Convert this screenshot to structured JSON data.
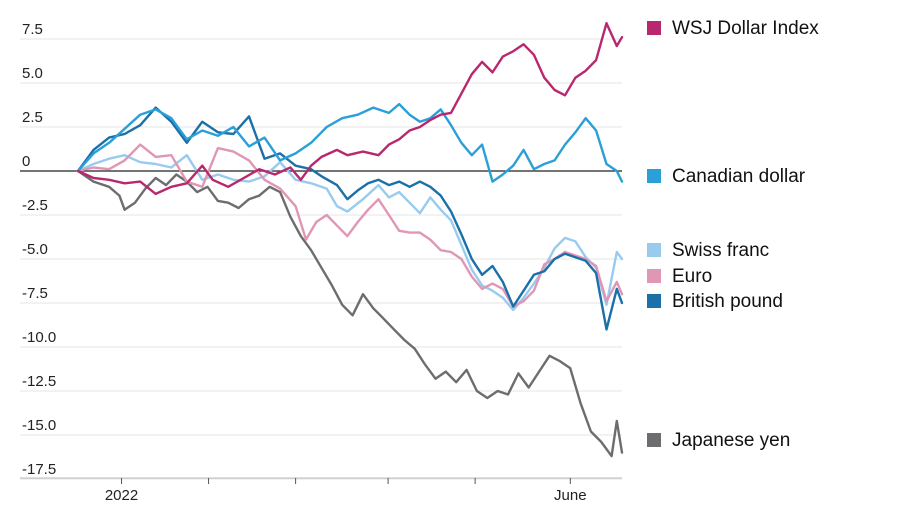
{
  "chart_data": {
    "type": "line",
    "title": "",
    "xlabel": "",
    "ylabel": "",
    "ylim": [
      -17.5,
      7.5
    ],
    "y_ticks": [
      7.5,
      5.0,
      2.5,
      0,
      -2.5,
      -5.0,
      -7.5,
      -10.0,
      -12.5,
      -15.0,
      -17.5
    ],
    "y_tick_labels": [
      "7.5",
      "5.0",
      "2.5",
      "0",
      "-2.5",
      "-5.0",
      "-7.5",
      "-10.0",
      "-12.5",
      "-15.0",
      "-17.5"
    ],
    "x_tick_labels": [
      {
        "label": "2022",
        "t": 0.08
      },
      {
        "label": "June",
        "t": 0.905
      }
    ],
    "x_minor_ticks": [
      0.08,
      0.24,
      0.4,
      0.57,
      0.73,
      0.905
    ],
    "grid": "horizontal",
    "legend_placement": "right",
    "series": [
      {
        "name": "WSJ Dollar Index",
        "color": "#b8286e",
        "points": [
          [
            0,
            0
          ],
          [
            0.03,
            -0.4
          ],
          [
            0.06,
            -0.5
          ],
          [
            0.09,
            -0.7
          ],
          [
            0.12,
            -0.6
          ],
          [
            0.15,
            -1.3
          ],
          [
            0.18,
            -0.9
          ],
          [
            0.21,
            -0.7
          ],
          [
            0.24,
            0.3
          ],
          [
            0.26,
            -0.5
          ],
          [
            0.29,
            -0.9
          ],
          [
            0.32,
            -0.4
          ],
          [
            0.35,
            0.1
          ],
          [
            0.38,
            -0.2
          ],
          [
            0.41,
            0.2
          ],
          [
            0.43,
            -0.5
          ],
          [
            0.45,
            0.3
          ],
          [
            0.47,
            0.8
          ],
          [
            0.5,
            1.2
          ],
          [
            0.52,
            0.9
          ],
          [
            0.55,
            1.1
          ],
          [
            0.58,
            0.9
          ],
          [
            0.6,
            1.5
          ],
          [
            0.62,
            1.8
          ],
          [
            0.64,
            2.3
          ],
          [
            0.66,
            2.5
          ],
          [
            0.68,
            2.9
          ],
          [
            0.7,
            3.2
          ],
          [
            0.72,
            3.3
          ],
          [
            0.74,
            4.4
          ],
          [
            0.76,
            5.5
          ],
          [
            0.78,
            6.2
          ],
          [
            0.8,
            5.6
          ],
          [
            0.82,
            6.5
          ],
          [
            0.84,
            6.8
          ],
          [
            0.86,
            7.2
          ],
          [
            0.88,
            6.6
          ],
          [
            0.9,
            5.3
          ],
          [
            0.92,
            4.6
          ],
          [
            0.94,
            4.3
          ],
          [
            0.96,
            5.3
          ],
          [
            0.98,
            5.7
          ],
          [
            1.0,
            6.3
          ],
          [
            1.02,
            8.4
          ],
          [
            1.04,
            7.1
          ],
          [
            1.05,
            7.6
          ]
        ]
      },
      {
        "name": "Canadian dollar",
        "color": "#2a9fd8",
        "points": [
          [
            0,
            0
          ],
          [
            0.03,
            1.0
          ],
          [
            0.06,
            1.6
          ],
          [
            0.09,
            2.4
          ],
          [
            0.12,
            3.2
          ],
          [
            0.15,
            3.5
          ],
          [
            0.18,
            3.0
          ],
          [
            0.21,
            1.8
          ],
          [
            0.24,
            2.3
          ],
          [
            0.27,
            2.0
          ],
          [
            0.3,
            2.5
          ],
          [
            0.33,
            1.4
          ],
          [
            0.36,
            1.9
          ],
          [
            0.39,
            0.6
          ],
          [
            0.42,
            1.0
          ],
          [
            0.45,
            1.6
          ],
          [
            0.48,
            2.5
          ],
          [
            0.51,
            3.0
          ],
          [
            0.54,
            3.2
          ],
          [
            0.57,
            3.6
          ],
          [
            0.6,
            3.3
          ],
          [
            0.62,
            3.8
          ],
          [
            0.64,
            3.2
          ],
          [
            0.66,
            2.8
          ],
          [
            0.68,
            3.0
          ],
          [
            0.7,
            3.5
          ],
          [
            0.72,
            2.6
          ],
          [
            0.74,
            1.6
          ],
          [
            0.76,
            0.9
          ],
          [
            0.78,
            1.5
          ],
          [
            0.8,
            -0.6
          ],
          [
            0.82,
            -0.2
          ],
          [
            0.84,
            0.3
          ],
          [
            0.86,
            1.2
          ],
          [
            0.88,
            0.1
          ],
          [
            0.9,
            0.4
          ],
          [
            0.92,
            0.6
          ],
          [
            0.94,
            1.5
          ],
          [
            0.96,
            2.2
          ],
          [
            0.98,
            3.0
          ],
          [
            1.0,
            2.3
          ],
          [
            1.02,
            0.4
          ],
          [
            1.04,
            0.0
          ],
          [
            1.05,
            -0.6
          ]
        ]
      },
      {
        "name": "Swiss franc",
        "color": "#98cbee",
        "points": [
          [
            0,
            0
          ],
          [
            0.03,
            0.4
          ],
          [
            0.06,
            0.7
          ],
          [
            0.09,
            0.9
          ],
          [
            0.12,
            0.5
          ],
          [
            0.15,
            0.4
          ],
          [
            0.18,
            0.2
          ],
          [
            0.21,
            0.9
          ],
          [
            0.24,
            -0.5
          ],
          [
            0.27,
            -0.2
          ],
          [
            0.3,
            -0.5
          ],
          [
            0.33,
            -0.6
          ],
          [
            0.36,
            -0.3
          ],
          [
            0.39,
            0.5
          ],
          [
            0.42,
            -0.5
          ],
          [
            0.45,
            -0.7
          ],
          [
            0.48,
            -1.0
          ],
          [
            0.5,
            -2.0
          ],
          [
            0.52,
            -2.3
          ],
          [
            0.55,
            -1.6
          ],
          [
            0.58,
            -0.8
          ],
          [
            0.6,
            -1.5
          ],
          [
            0.62,
            -1.2
          ],
          [
            0.64,
            -1.8
          ],
          [
            0.66,
            -2.4
          ],
          [
            0.68,
            -1.5
          ],
          [
            0.7,
            -2.2
          ],
          [
            0.72,
            -2.8
          ],
          [
            0.74,
            -4.2
          ],
          [
            0.76,
            -5.6
          ],
          [
            0.78,
            -6.5
          ],
          [
            0.8,
            -6.8
          ],
          [
            0.82,
            -7.2
          ],
          [
            0.84,
            -7.9
          ],
          [
            0.86,
            -7.2
          ],
          [
            0.88,
            -6.4
          ],
          [
            0.9,
            -5.5
          ],
          [
            0.92,
            -4.4
          ],
          [
            0.94,
            -3.8
          ],
          [
            0.96,
            -4.0
          ],
          [
            0.98,
            -4.9
          ],
          [
            1.0,
            -5.5
          ],
          [
            1.02,
            -7.6
          ],
          [
            1.04,
            -4.6
          ],
          [
            1.05,
            -5.0
          ]
        ]
      },
      {
        "name": "Euro",
        "color": "#e097b5",
        "points": [
          [
            0,
            0
          ],
          [
            0.03,
            0.2
          ],
          [
            0.06,
            0.1
          ],
          [
            0.09,
            0.6
          ],
          [
            0.12,
            1.5
          ],
          [
            0.15,
            0.8
          ],
          [
            0.18,
            0.9
          ],
          [
            0.21,
            -0.6
          ],
          [
            0.24,
            -0.9
          ],
          [
            0.27,
            1.3
          ],
          [
            0.3,
            1.1
          ],
          [
            0.33,
            0.6
          ],
          [
            0.36,
            -0.5
          ],
          [
            0.39,
            -1.0
          ],
          [
            0.42,
            -2.0
          ],
          [
            0.44,
            -3.9
          ],
          [
            0.46,
            -2.9
          ],
          [
            0.48,
            -2.5
          ],
          [
            0.5,
            -3.1
          ],
          [
            0.52,
            -3.7
          ],
          [
            0.54,
            -2.9
          ],
          [
            0.56,
            -2.2
          ],
          [
            0.58,
            -1.6
          ],
          [
            0.6,
            -2.5
          ],
          [
            0.62,
            -3.4
          ],
          [
            0.64,
            -3.5
          ],
          [
            0.66,
            -3.5
          ],
          [
            0.68,
            -3.9
          ],
          [
            0.7,
            -4.5
          ],
          [
            0.72,
            -4.6
          ],
          [
            0.74,
            -5.0
          ],
          [
            0.76,
            -6.0
          ],
          [
            0.78,
            -6.7
          ],
          [
            0.8,
            -6.4
          ],
          [
            0.82,
            -6.7
          ],
          [
            0.84,
            -7.7
          ],
          [
            0.86,
            -7.4
          ],
          [
            0.88,
            -6.8
          ],
          [
            0.9,
            -5.3
          ],
          [
            0.92,
            -5.0
          ],
          [
            0.94,
            -4.6
          ],
          [
            0.96,
            -4.8
          ],
          [
            0.98,
            -5.0
          ],
          [
            1.0,
            -5.4
          ],
          [
            1.02,
            -7.4
          ],
          [
            1.04,
            -6.3
          ],
          [
            1.05,
            -7.0
          ]
        ]
      },
      {
        "name": "British pound",
        "color": "#1b70a8",
        "points": [
          [
            0,
            0
          ],
          [
            0.03,
            1.2
          ],
          [
            0.06,
            1.9
          ],
          [
            0.09,
            2.1
          ],
          [
            0.12,
            2.6
          ],
          [
            0.15,
            3.6
          ],
          [
            0.18,
            2.8
          ],
          [
            0.21,
            1.6
          ],
          [
            0.24,
            2.8
          ],
          [
            0.27,
            2.2
          ],
          [
            0.3,
            2.1
          ],
          [
            0.33,
            3.1
          ],
          [
            0.36,
            0.7
          ],
          [
            0.39,
            1.0
          ],
          [
            0.42,
            0.3
          ],
          [
            0.45,
            0.1
          ],
          [
            0.47,
            -0.3
          ],
          [
            0.5,
            -0.8
          ],
          [
            0.52,
            -1.6
          ],
          [
            0.54,
            -1.1
          ],
          [
            0.56,
            -0.7
          ],
          [
            0.58,
            -0.5
          ],
          [
            0.6,
            -0.8
          ],
          [
            0.62,
            -0.6
          ],
          [
            0.64,
            -0.9
          ],
          [
            0.66,
            -0.6
          ],
          [
            0.68,
            -0.9
          ],
          [
            0.7,
            -1.4
          ],
          [
            0.72,
            -2.3
          ],
          [
            0.74,
            -3.6
          ],
          [
            0.76,
            -5.0
          ],
          [
            0.78,
            -5.9
          ],
          [
            0.8,
            -5.4
          ],
          [
            0.82,
            -6.3
          ],
          [
            0.84,
            -7.7
          ],
          [
            0.86,
            -6.8
          ],
          [
            0.88,
            -5.9
          ],
          [
            0.9,
            -5.7
          ],
          [
            0.92,
            -5.0
          ],
          [
            0.94,
            -4.7
          ],
          [
            0.96,
            -4.9
          ],
          [
            0.98,
            -5.1
          ],
          [
            1.0,
            -5.8
          ],
          [
            1.02,
            -9.0
          ],
          [
            1.04,
            -6.7
          ],
          [
            1.05,
            -7.5
          ]
        ]
      },
      {
        "name": "Japanese yen",
        "color": "#6d6d70",
        "points": [
          [
            0,
            0
          ],
          [
            0.03,
            -0.6
          ],
          [
            0.06,
            -0.9
          ],
          [
            0.08,
            -1.4
          ],
          [
            0.09,
            -2.2
          ],
          [
            0.11,
            -1.8
          ],
          [
            0.13,
            -1.0
          ],
          [
            0.15,
            -0.4
          ],
          [
            0.17,
            -0.8
          ],
          [
            0.19,
            -0.2
          ],
          [
            0.21,
            -0.6
          ],
          [
            0.23,
            -1.2
          ],
          [
            0.25,
            -0.9
          ],
          [
            0.27,
            -1.7
          ],
          [
            0.29,
            -1.8
          ],
          [
            0.31,
            -2.1
          ],
          [
            0.33,
            -1.6
          ],
          [
            0.35,
            -1.4
          ],
          [
            0.37,
            -0.9
          ],
          [
            0.39,
            -1.2
          ],
          [
            0.41,
            -2.6
          ],
          [
            0.43,
            -3.7
          ],
          [
            0.45,
            -4.5
          ],
          [
            0.47,
            -5.5
          ],
          [
            0.49,
            -6.5
          ],
          [
            0.51,
            -7.6
          ],
          [
            0.53,
            -8.2
          ],
          [
            0.55,
            -7.0
          ],
          [
            0.57,
            -7.8
          ],
          [
            0.59,
            -8.4
          ],
          [
            0.61,
            -9.0
          ],
          [
            0.63,
            -9.6
          ],
          [
            0.65,
            -10.1
          ],
          [
            0.67,
            -11.0
          ],
          [
            0.69,
            -11.8
          ],
          [
            0.71,
            -11.4
          ],
          [
            0.73,
            -12.0
          ],
          [
            0.75,
            -11.3
          ],
          [
            0.77,
            -12.5
          ],
          [
            0.79,
            -12.9
          ],
          [
            0.81,
            -12.5
          ],
          [
            0.83,
            -12.7
          ],
          [
            0.85,
            -11.5
          ],
          [
            0.87,
            -12.3
          ],
          [
            0.89,
            -11.4
          ],
          [
            0.91,
            -10.5
          ],
          [
            0.93,
            -10.8
          ],
          [
            0.95,
            -11.2
          ],
          [
            0.97,
            -13.2
          ],
          [
            0.99,
            -14.8
          ],
          [
            1.01,
            -15.4
          ],
          [
            1.03,
            -16.2
          ],
          [
            1.04,
            -14.2
          ],
          [
            1.05,
            -16.0
          ]
        ]
      }
    ]
  }
}
